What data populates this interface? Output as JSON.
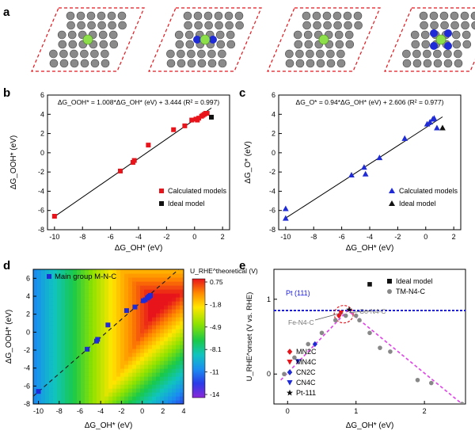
{
  "panel_labels": [
    "a",
    "b",
    "c",
    "d",
    "e"
  ],
  "colors": {
    "red": "#e8141b",
    "black": "#111111",
    "blue": "#1f2bd6",
    "gray": "#888888",
    "magenta": "#e040e8",
    "pt_blue": "#1a1ae6"
  },
  "chart_data": [
    {
      "panel": "b",
      "type": "scatter",
      "equation": "ΔG_OOH* = 1.008*ΔG_OH* (eV) + 3.444 (R² = 0.997)",
      "xlabel": "ΔG_OH* (eV)",
      "ylabel": "ΔG_OOH* (eV)",
      "xlim": [
        -10.5,
        2.5
      ],
      "ylim": [
        -8,
        6
      ],
      "xticks": [
        "-10",
        "-8",
        "-6",
        "-4",
        "-2",
        "0",
        "2"
      ],
      "yticks": [
        "-8",
        "-6",
        "-4",
        "-2",
        "0",
        "2",
        "4",
        "6"
      ],
      "fit": {
        "slope": 1.008,
        "intercept": 3.444,
        "x_range": [
          -10,
          1.2
        ]
      },
      "legend_position": "bottom-right",
      "series": [
        {
          "name": "Calculated models",
          "marker": "square",
          "color": "#e8141b",
          "points": [
            [
              -10,
              -6.6
            ],
            [
              -5.3,
              -1.9
            ],
            [
              -4.4,
              -1.0
            ],
            [
              -4.3,
              -0.8
            ],
            [
              -3.3,
              0.8
            ],
            [
              -1.5,
              2.4
            ],
            [
              -0.7,
              2.8
            ],
            [
              -0.2,
              3.4
            ],
            [
              0.1,
              3.5
            ],
            [
              0.2,
              3.4
            ],
            [
              0.3,
              3.6
            ],
            [
              0.5,
              3.8
            ],
            [
              0.6,
              3.9
            ],
            [
              0.7,
              4.0
            ],
            [
              0.8,
              4.1
            ],
            [
              0.9,
              4.1
            ]
          ]
        },
        {
          "name": "Ideal model",
          "marker": "square",
          "color": "#111111",
          "points": [
            [
              1.2,
              3.7
            ]
          ]
        }
      ]
    },
    {
      "panel": "c",
      "type": "scatter",
      "equation": "ΔG_O* = 0.94*ΔG_OH* (eV) + 2.606 (R² = 0.977)",
      "xlabel": "ΔG_OH* (eV)",
      "ylabel": "ΔG_O* (eV)",
      "xlim": [
        -10.5,
        2.5
      ],
      "ylim": [
        -8,
        6
      ],
      "xticks": [
        "-10",
        "-8",
        "-6",
        "-4",
        "-2",
        "0",
        "2"
      ],
      "yticks": [
        "-8",
        "-6",
        "-4",
        "-2",
        "0",
        "2",
        "4",
        "6"
      ],
      "fit": {
        "slope": 0.94,
        "intercept": 2.606,
        "x_range": [
          -10,
          1.2
        ]
      },
      "legend_position": "bottom-right",
      "series": [
        {
          "name": "Calculated models",
          "marker": "triangle",
          "color": "#1f2bd6",
          "points": [
            [
              -10,
              -6.8
            ],
            [
              -10,
              -5.8
            ],
            [
              -5.3,
              -2.3
            ],
            [
              -4.4,
              -1.5
            ],
            [
              -4.3,
              -2.2
            ],
            [
              -3.3,
              -0.5
            ],
            [
              -1.5,
              1.5
            ],
            [
              0.1,
              3.0
            ],
            [
              0.3,
              3.2
            ],
            [
              0.5,
              3.5
            ],
            [
              0.6,
              3.6
            ],
            [
              0.8,
              2.6
            ]
          ]
        },
        {
          "name": "Ideal model",
          "marker": "triangle",
          "color": "#111111",
          "points": [
            [
              1.2,
              2.6
            ]
          ]
        }
      ]
    },
    {
      "panel": "d",
      "type": "heatmap",
      "xlabel": "ΔG_OH* (eV)",
      "ylabel": "ΔG_OOH* (eV)",
      "colorbar_label": "U_RHE^theoretical (V)",
      "colorbar_ticks": [
        "0.75",
        "-1.8",
        "-4.9",
        "-8.1",
        "-11",
        "-14"
      ],
      "xlim": [
        -10.5,
        4
      ],
      "ylim": [
        -8,
        7
      ],
      "xticks": [
        "-10",
        "-8",
        "-6",
        "-4",
        "-2",
        "0",
        "2",
        "4"
      ],
      "yticks": [
        "-8",
        "-6",
        "-4",
        "-2",
        "0",
        "2",
        "4",
        "6"
      ],
      "dashed_line": {
        "slope": 1.008,
        "intercept": 3.444
      },
      "series": [
        {
          "name": "Main group M-N-C",
          "marker": "square",
          "color": "#1f2bd6",
          "points": [
            [
              -10,
              -6.6
            ],
            [
              -5.3,
              -1.9
            ],
            [
              -4.4,
              -1.0
            ],
            [
              -4.3,
              -0.8
            ],
            [
              -3.3,
              0.8
            ],
            [
              -1.5,
              2.4
            ],
            [
              -0.7,
              2.8
            ],
            [
              0.1,
              3.5
            ],
            [
              0.3,
              3.6
            ],
            [
              0.5,
              3.8
            ],
            [
              0.6,
              3.9
            ],
            [
              0.7,
              4.0
            ],
            [
              0.8,
              4.1
            ]
          ]
        }
      ]
    },
    {
      "panel": "e",
      "type": "scatter",
      "xlabel": "ΔG_OH* (eV)",
      "ylabel": "U_RHE^onset (V vs. RHE)",
      "xlim": [
        -0.2,
        2.6
      ],
      "ylim": [
        -0.4,
        1.4
      ],
      "xticks": [
        "0",
        "1",
        "2"
      ],
      "yticks": [
        "0",
        "1"
      ],
      "reference_line": {
        "label": "Pt (111)",
        "y": 0.85
      },
      "volcano": {
        "peak": [
          0.88,
          0.85
        ],
        "left_end": [
          -0.1,
          -0.08
        ],
        "right_end": [
          2.55,
          -0.4
        ]
      },
      "annotations": [
        "Fe-N4-C",
        "Co-N4-C"
      ],
      "legend_top": [
        {
          "name": "Ideal model",
          "marker": "square",
          "color": "#111111"
        },
        {
          "name": "TM-N4-C",
          "marker": "circle",
          "color": "#888888"
        }
      ],
      "legend_bottom": [
        {
          "name": "MN2C",
          "marker": "diamond",
          "color": "#e8141b"
        },
        {
          "name": "MN4C",
          "marker": "triangle-down",
          "color": "#e8141b"
        },
        {
          "name": "CN2C",
          "marker": "diamond",
          "color": "#1f2bd6"
        },
        {
          "name": "CN4C",
          "marker": "triangle-down",
          "color": "#1f2bd6"
        },
        {
          "name": "Pt-111",
          "marker": "star",
          "color": "#111111"
        }
      ],
      "series": [
        {
          "name": "Ideal model",
          "marker": "square",
          "color": "#111111",
          "points": [
            [
              1.2,
              1.2
            ]
          ]
        },
        {
          "name": "TM-N4-C",
          "marker": "circle",
          "color": "#888888",
          "points": [
            [
              -0.05,
              0.0
            ],
            [
              0.1,
              0.22
            ],
            [
              0.3,
              0.4
            ],
            [
              0.5,
              0.55
            ],
            [
              0.7,
              0.72
            ],
            [
              0.78,
              0.82
            ],
            [
              0.85,
              0.78
            ],
            [
              1.0,
              0.78
            ],
            [
              1.05,
              0.72
            ],
            [
              1.2,
              0.55
            ],
            [
              1.35,
              0.35
            ],
            [
              1.5,
              0.3
            ],
            [
              1.9,
              -0.08
            ],
            [
              2.1,
              -0.12
            ],
            [
              2.55,
              -0.4
            ]
          ]
        },
        {
          "name": "MN2C",
          "marker": "diamond",
          "color": "#e8141b",
          "points": [
            [
              0.75,
              0.78
            ]
          ]
        },
        {
          "name": "MN4C",
          "marker": "triangle-down",
          "color": "#e8141b",
          "points": [
            [
              0.78,
              0.82
            ]
          ]
        },
        {
          "name": "CN2C",
          "marker": "diamond",
          "color": "#1f2bd6",
          "points": [
            [
              0.4,
              0.4
            ]
          ]
        },
        {
          "name": "CN4C",
          "marker": "triangle-down",
          "color": "#1f2bd6",
          "points": [
            [
              0.15,
              0.17
            ]
          ]
        },
        {
          "name": "Pt-111",
          "marker": "star",
          "color": "#111111",
          "points": [
            [
              0.9,
              0.86
            ]
          ]
        }
      ]
    }
  ],
  "panel_a_atoms": [
    {
      "center": "green",
      "neighbors": "none"
    },
    {
      "center": "green",
      "neighbors": "blue-2"
    },
    {
      "center": "green",
      "neighbors": "none"
    },
    {
      "center": "green",
      "neighbors": "blue-4"
    }
  ]
}
